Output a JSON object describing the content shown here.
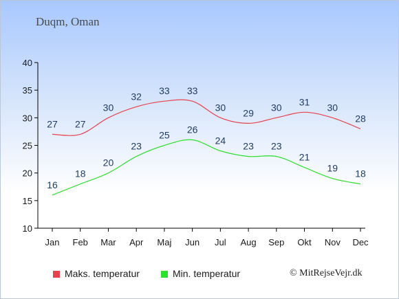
{
  "header": {
    "location": "Duqm, Oman"
  },
  "footer": {
    "copyright": "© MitRejseVejr.dk"
  },
  "colors": {
    "max_series": "#e8424c",
    "min_series": "#2ee02e",
    "label_text": "#1f3a5f"
  },
  "chart_data": {
    "type": "line",
    "title": "Duqm, Oman",
    "xlabel": "",
    "ylabel": "",
    "categories": [
      "Jan",
      "Feb",
      "Mar",
      "Apr",
      "Maj",
      "Jun",
      "Jul",
      "Aug",
      "Sep",
      "Okt",
      "Nov",
      "Dec"
    ],
    "ylim": [
      10,
      40
    ],
    "yticks": [
      10,
      15,
      20,
      25,
      30,
      35,
      40
    ],
    "grid": false,
    "legend_position": "bottom",
    "series": [
      {
        "name": "Maks. temperatur",
        "color": "#e8424c",
        "values": [
          27,
          27,
          30,
          32,
          33,
          33,
          30,
          29,
          30,
          31,
          30,
          28
        ]
      },
      {
        "name": "Min. temperatur",
        "color": "#2ee02e",
        "values": [
          16,
          18,
          20,
          23,
          25,
          26,
          24,
          23,
          23,
          21,
          19,
          18
        ]
      }
    ]
  }
}
